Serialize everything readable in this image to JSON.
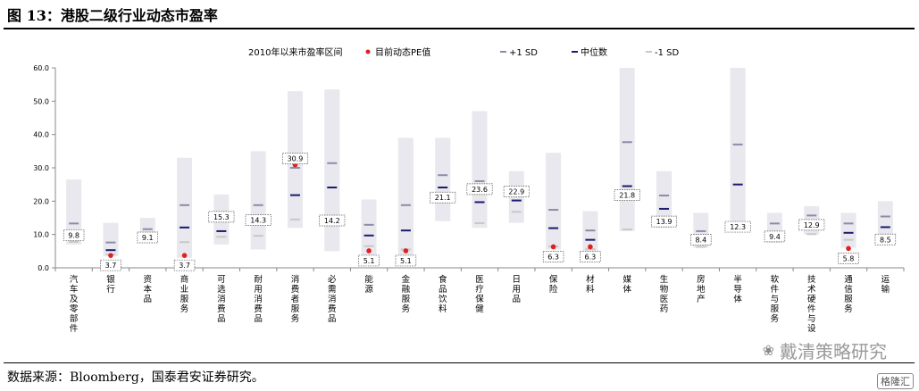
{
  "figure": {
    "title": "图 13：港股二级行业动态市盈率",
    "source": "数据来源：Bloomberg，国泰君安证券研究。",
    "watermark": "戴清策略研究",
    "corner_logo": "格隆汇"
  },
  "colors": {
    "range_bar": "#e8e8ee",
    "current_dot": "#e02020",
    "plus_sd": "#8c8ca8",
    "median": "#1a1a6e",
    "minus_sd": "#c8c8c8",
    "axis": "#888888"
  },
  "chart_data": {
    "type": "range-bar",
    "title": "",
    "xlabel": "",
    "ylabel": "",
    "ylim": [
      0,
      60
    ],
    "yticks": [
      0,
      10,
      20,
      30,
      40,
      50,
      60
    ],
    "grid": false,
    "legend": {
      "position": "top-center",
      "range_label": "2010年以来市盈率区间",
      "current_label": "目前动态PE值",
      "plus_sd_label": "+1 SD",
      "median_label": "中位数",
      "minus_sd_label": "-1 SD"
    },
    "categories": [
      "汽车及零部件",
      "银行",
      "资本品",
      "商业服务",
      "可选消费品",
      "耐用消费品",
      "消费者服务",
      "必需消费品",
      "能源",
      "金融服务",
      "食品饮料",
      "医疗保健",
      "日用品",
      "保险",
      "材料",
      "媒体",
      "生物医药",
      "房地产",
      "半导体",
      "软件与服务",
      "技术硬件与设",
      "通信服务",
      "运输"
    ],
    "range_low": [
      7,
      3.5,
      7.5,
      3,
      7,
      5.5,
      12,
      5,
      3,
      3.5,
      14,
      12,
      13.5,
      5.5,
      5,
      11,
      12,
      6,
      12,
      7.5,
      10,
      6,
      7.5
    ],
    "range_high": [
      26.5,
      13.5,
      15,
      33,
      22,
      35,
      53,
      53.5,
      20.5,
      39,
      39,
      47,
      29,
      34.5,
      17,
      60,
      29,
      16.5,
      60,
      16.5,
      18.5,
      16.5,
      20
    ],
    "plus_sd": [
      13.3,
      7.6,
      11.6,
      18.8,
      15.2,
      18.8,
      30,
      31.4,
      12.9,
      18.8,
      27.8,
      26,
      23.5,
      17.4,
      11.2,
      37.7,
      21.7,
      11,
      37,
      13.3,
      15.7,
      13.3,
      15.4
    ],
    "median": [
      10.5,
      5.3,
      9.8,
      12.1,
      11,
      14.2,
      21.8,
      24.1,
      9.7,
      11.2,
      24.1,
      19.7,
      20.2,
      11.9,
      8.4,
      24.5,
      17.7,
      8.6,
      25,
      10.7,
      13,
      10.5,
      12.2
    ],
    "minus_sd": [
      7.8,
      4,
      8.1,
      7.7,
      9.3,
      9.6,
      14.5,
      14.8,
      6.5,
      5.5,
      20.4,
      13.4,
      16.8,
      6.4,
      5.6,
      11.5,
      14,
      6.3,
      12.8,
      8.1,
      10.1,
      8.4,
      9.1
    ],
    "current": [
      9.8,
      3.7,
      9.1,
      3.7,
      15.3,
      14.3,
      30.9,
      14.2,
      5.1,
      5.1,
      21.1,
      23.6,
      22.9,
      6.3,
      6.3,
      21.8,
      13.9,
      8.4,
      12.3,
      9.4,
      12.9,
      5.8,
      8.5
    ],
    "current_labels": [
      "9.8",
      "3.7",
      "9.1",
      "3.7",
      "15.3",
      "14.3",
      "30.9",
      "14.2",
      "5.1",
      "5.1",
      "21.1",
      "23.6",
      "22.9",
      "6.3",
      "6.3",
      "21.8",
      "13.9",
      "8.4",
      "12.3",
      "9.4",
      "12.9",
      "5.8",
      "8.5"
    ]
  }
}
